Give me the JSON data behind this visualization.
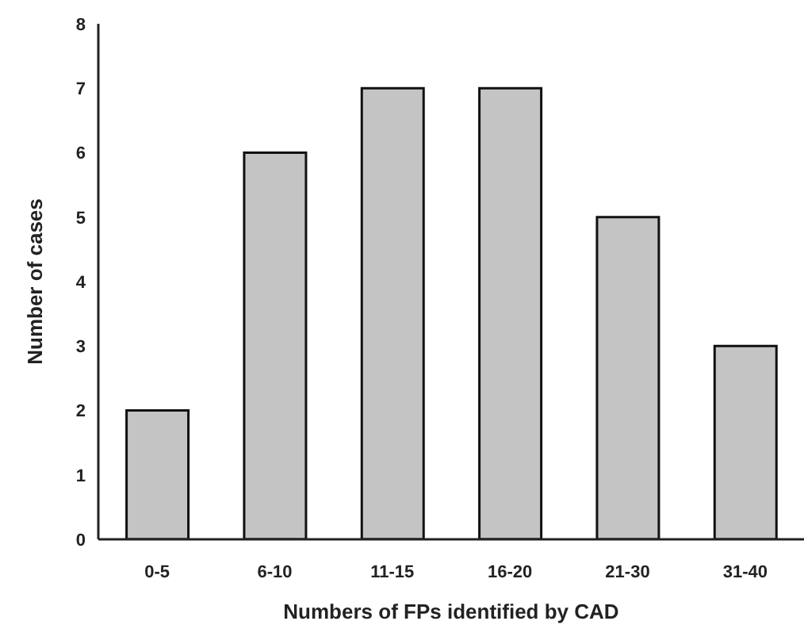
{
  "chart_data": {
    "type": "bar",
    "xlabel": "Numbers of FPs identified by CAD",
    "ylabel": "Number of cases",
    "categories": [
      "0-5",
      "6-10",
      "11-15",
      "16-20",
      "21-30",
      "31-40"
    ],
    "values": [
      2,
      6,
      7,
      7,
      5,
      3
    ],
    "color": "#c4c4c4",
    "ylim": [
      0,
      8
    ],
    "yticks": [
      0,
      1,
      2,
      3,
      4,
      5,
      6,
      7,
      8
    ],
    "grid": false,
    "legend": false
  }
}
